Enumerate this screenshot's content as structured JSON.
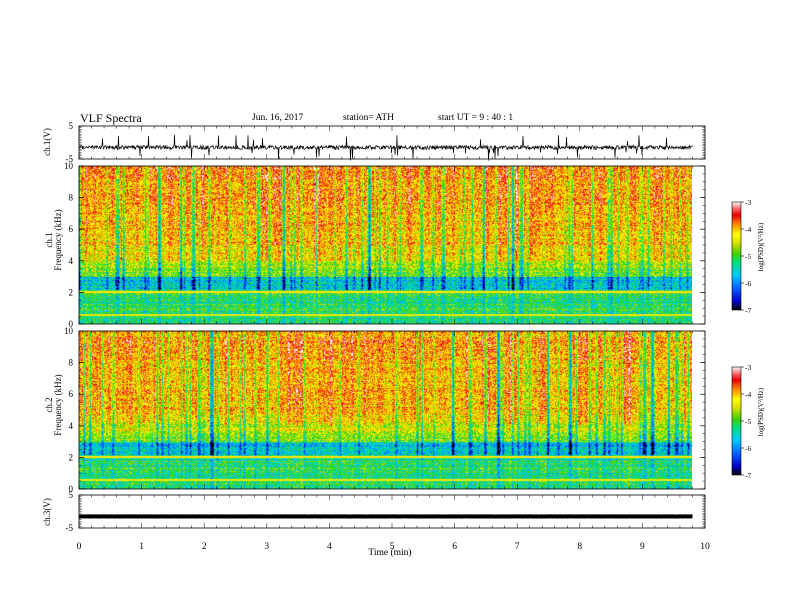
{
  "header": {
    "title": "VLF  Spectra",
    "date": "Jun. 16, 2017",
    "station": "station= ATH",
    "start": "start  UT  =   9  : 40 : 1"
  },
  "chart_data": [
    {
      "type": "line",
      "ylabel": "ch.1(V)",
      "ylim": [
        -5,
        5
      ],
      "yticks": [
        "5",
        "-5"
      ],
      "x_range_min": [
        0,
        9.8
      ],
      "trace_level_v": -1.5,
      "trace_noise_v": 1.2
    },
    {
      "type": "heatmap",
      "ylabel_top": "ch.1",
      "ylabel": "Frequency (kHz)",
      "ylim": [
        0,
        10
      ],
      "yticks": [
        "0",
        "2",
        "4",
        "6",
        "8",
        "10"
      ],
      "x_range_min": [
        0,
        9.8
      ],
      "colorbar": {
        "label": "log(PSD)(V²/Hz)",
        "ticks": [
          "-3",
          "-4",
          "-5",
          "-6",
          "-7"
        ],
        "range": [
          -7,
          -3
        ]
      },
      "color_scale": [
        "#000000",
        "#0000c8",
        "#0060ff",
        "#00c8ff",
        "#00e080",
        "#40d000",
        "#d8e000",
        "#ffff00",
        "#ff8000",
        "#e00000",
        "#ff8080",
        "#ffffff"
      ]
    },
    {
      "type": "heatmap",
      "ylabel_top": "ch.2",
      "ylabel": "Frequency (kHz)",
      "ylim": [
        0,
        10
      ],
      "yticks": [
        "0",
        "2",
        "4",
        "6",
        "8",
        "10"
      ],
      "x_range_min": [
        0,
        9.8
      ],
      "colorbar": {
        "label": "log(PSD)(V²/Hz)",
        "ticks": [
          "-3",
          "-4",
          "-5",
          "-6",
          "-7"
        ],
        "range": [
          -7,
          -3
        ]
      }
    },
    {
      "type": "line",
      "ylabel": "ch.3(V)",
      "ylim": [
        -5,
        5
      ],
      "yticks": [
        "5",
        "-5"
      ],
      "x_range_min": [
        0,
        9.8
      ],
      "trace_level_v": -1.5,
      "trace_noise_v": 0.05
    }
  ],
  "xaxis": {
    "label": "Time  (min)",
    "ticks": [
      "0",
      "1",
      "2",
      "3",
      "4",
      "5",
      "6",
      "7",
      "8",
      "9",
      "10"
    ],
    "xlim": [
      0,
      10
    ]
  }
}
